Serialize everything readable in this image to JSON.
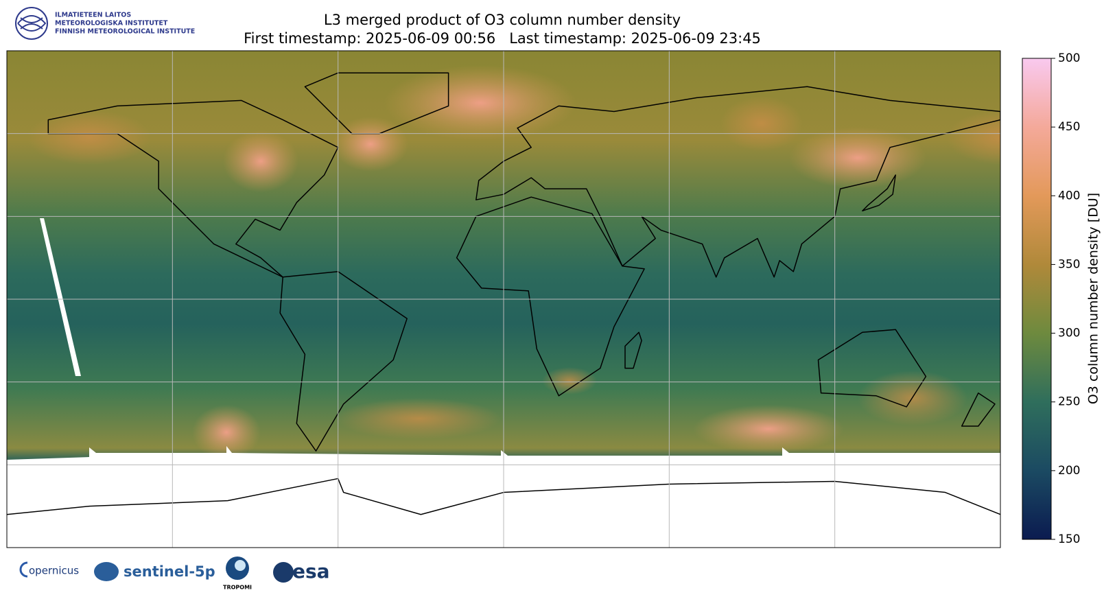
{
  "header": {
    "title": "L3 merged product of O3 column number density",
    "subtitle": "First timestamp: 2025-06-09 00:56   Last timestamp: 2025-06-09 23:45"
  },
  "logo": {
    "lines": [
      "ILMATIETEEN LAITOS",
      "METEOROLOGISKA INSTITUTET",
      "FINNISH METEOROLOGICAL INSTITUTE"
    ]
  },
  "colorbar": {
    "label": "O3 column number density [DU]",
    "lim": [
      150,
      500
    ],
    "ticks": [
      150,
      200,
      250,
      300,
      350,
      400,
      450,
      500
    ],
    "colors": [
      "#0b1b50",
      "#1b4a62",
      "#2f6e5c",
      "#6e8a3e",
      "#b0893a",
      "#e3995a",
      "#f4a99a",
      "#f9c9ef"
    ]
  },
  "footer_logos": [
    "opernicus",
    "sentinel-5p",
    "TROPOMI",
    "esa"
  ]
}
